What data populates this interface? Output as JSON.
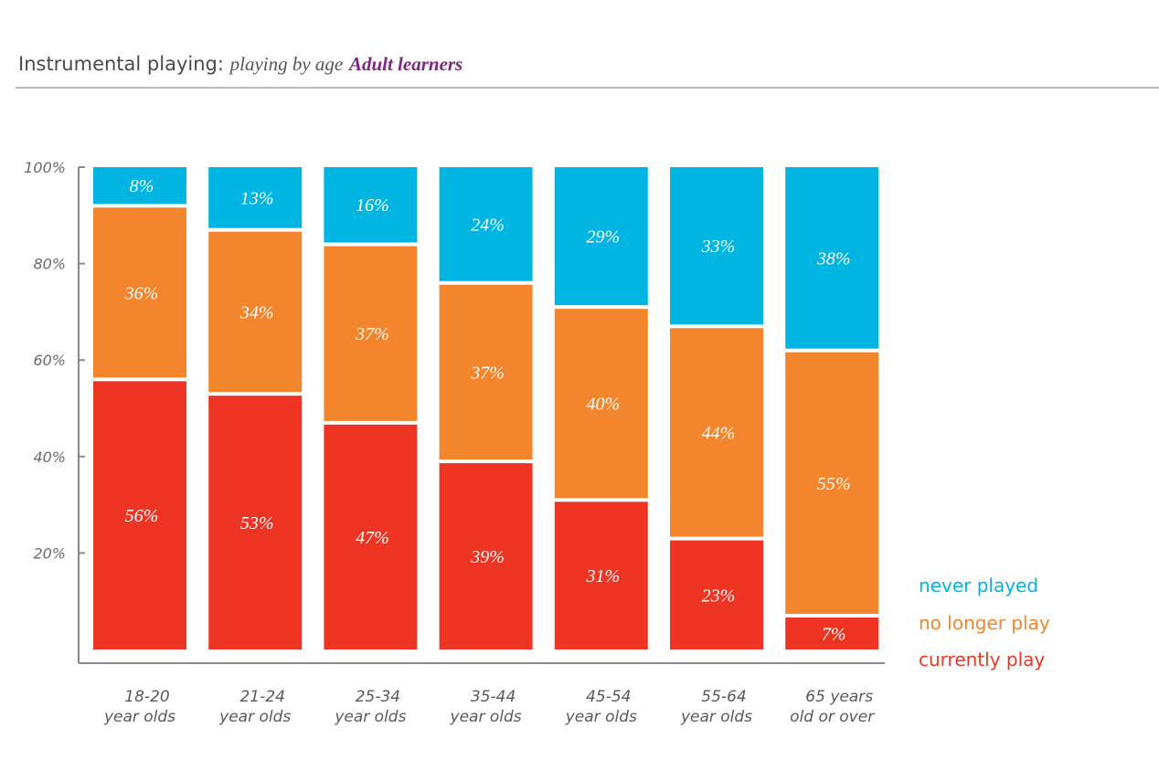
{
  "header": {
    "title_main": "Instrumental playing:",
    "title_sub": "playing by age",
    "title_accent": "Adult learners"
  },
  "chart_data": {
    "type": "bar",
    "stacked": true,
    "title": "Instrumental playing: playing by age Adult learners",
    "categories": [
      [
        "18-20",
        "year olds"
      ],
      [
        "21-24",
        "year olds"
      ],
      [
        "25-34",
        "year olds"
      ],
      [
        "35-44",
        "year olds"
      ],
      [
        "45-54",
        "year olds"
      ],
      [
        "55-64",
        "year olds"
      ],
      [
        "65 years",
        "old or over"
      ]
    ],
    "series": [
      {
        "name": "currently play",
        "color": "#ee3524",
        "values": [
          56,
          53,
          47,
          39,
          31,
          23,
          7
        ]
      },
      {
        "name": "no longer play",
        "color": "#f3852c",
        "values": [
          36,
          34,
          37,
          37,
          40,
          44,
          55
        ]
      },
      {
        "name": "never played",
        "color": "#00b5e2",
        "values": [
          8,
          13,
          16,
          24,
          29,
          33,
          38
        ]
      }
    ],
    "value_suffix": "%",
    "y_ticks": [
      "20%",
      "40%",
      "60%",
      "80%",
      "100%"
    ],
    "ylim": [
      0,
      100
    ],
    "legend": {
      "placement": "bottom-right",
      "order": [
        "never played",
        "no longer play",
        "currently play"
      ]
    }
  }
}
